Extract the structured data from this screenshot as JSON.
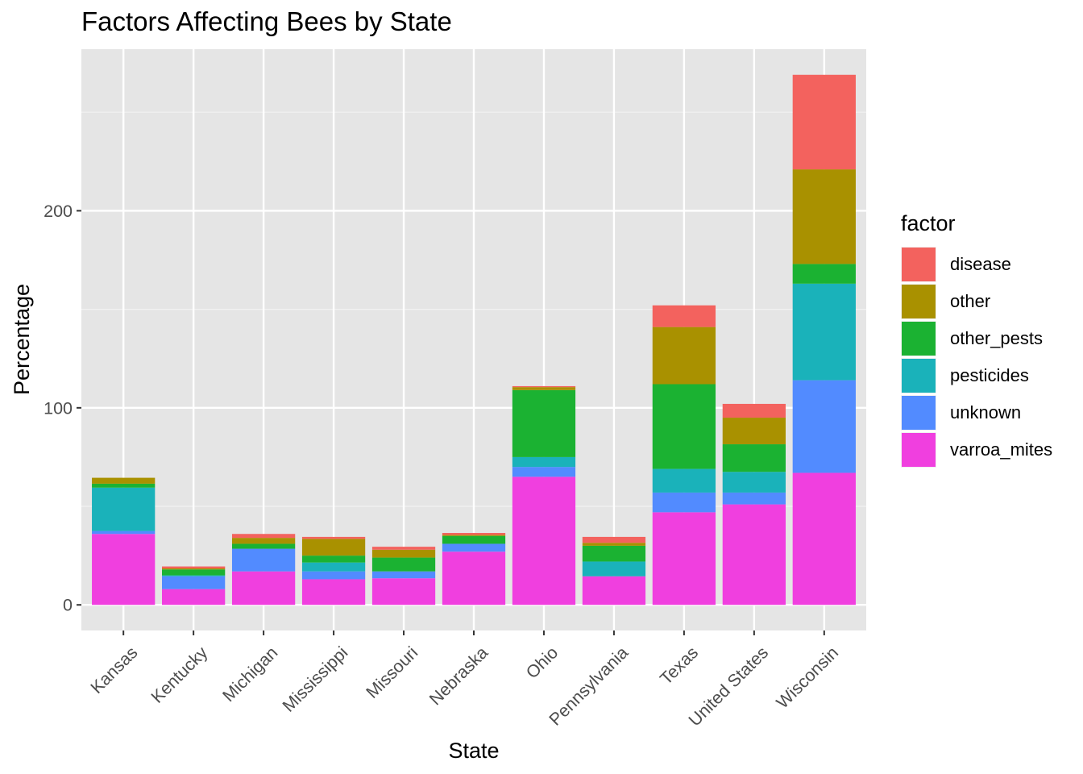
{
  "chart_data": {
    "type": "bar",
    "stacked": true,
    "title": "Factors Affecting Bees by State",
    "xlabel": "State",
    "ylabel": "Percentage",
    "ylim": [
      -13,
      282
    ],
    "yticks": [
      0,
      100,
      200
    ],
    "grid": true,
    "legend_position": "right",
    "legend_title": "factor",
    "categories": [
      "Kansas",
      "Kentucky",
      "Michigan",
      "Mississippi",
      "Missouri",
      "Nebraska",
      "Ohio",
      "Pennsylvania",
      "Texas",
      "United States",
      "Wisconsin"
    ],
    "series": [
      {
        "name": "varroa_mites",
        "color": "#F03FDF",
        "values": [
          36,
          8,
          17,
          13,
          13.5,
          27,
          65,
          14.5,
          47,
          51,
          67
        ]
      },
      {
        "name": "unknown",
        "color": "#528BFF",
        "values": [
          1.5,
          6.5,
          11.5,
          4,
          3.5,
          4,
          5,
          0,
          10,
          6,
          47
        ]
      },
      {
        "name": "pesticides",
        "color": "#1AB2BA",
        "values": [
          22,
          0.5,
          0,
          4.5,
          0,
          0,
          5,
          7.5,
          12,
          10.5,
          49
        ]
      },
      {
        "name": "other_pests",
        "color": "#1BB232",
        "values": [
          2,
          3,
          2.5,
          3.5,
          7,
          4,
          34,
          8,
          43,
          14,
          10
        ]
      },
      {
        "name": "other",
        "color": "#A99100",
        "values": [
          3,
          0.5,
          3,
          8.5,
          4,
          0.5,
          1.5,
          1.5,
          29,
          13.5,
          48
        ]
      },
      {
        "name": "disease",
        "color": "#F3625E",
        "values": [
          0,
          1,
          2,
          1,
          1.5,
          1,
          0.5,
          3,
          11,
          7,
          48
        ]
      }
    ]
  }
}
